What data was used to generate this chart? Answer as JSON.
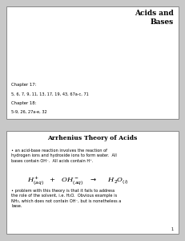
{
  "fig_bg": "#c8c8c8",
  "slide_bg": "#ffffff",
  "slide_border": "#888888",
  "slide1": {
    "title": "Acids and\nBases",
    "chapter17_label": "Chapter 17:",
    "chapter17_text": "5, 6, 7, 9, 11, 13, 17, 19, 43, 67a-c, 71",
    "chapter18_label": "Chapter 18:",
    "chapter18_text": "5-9, 26, 27a-e, 32"
  },
  "slide2": {
    "section_title": "Arrhenius Theory of Acids",
    "bullet1_line1": "• an acid-base reaction involves the reaction of",
    "bullet1_line2": "hydrogen ions and hydroxide ions to form water.  All",
    "bullet1_line3": "bases contain OH⁻.  All acids contain H⁺.",
    "bullet2_line1": "• problem with this theory is that it fails to address",
    "bullet2_line2": "the role of the solvent, i.e. H₂O.  Obvious example is",
    "bullet2_line3": "NH₃, which does not contain OH⁻, but is nonetheless a",
    "bullet2_line4": "base.",
    "page_num": "1"
  }
}
